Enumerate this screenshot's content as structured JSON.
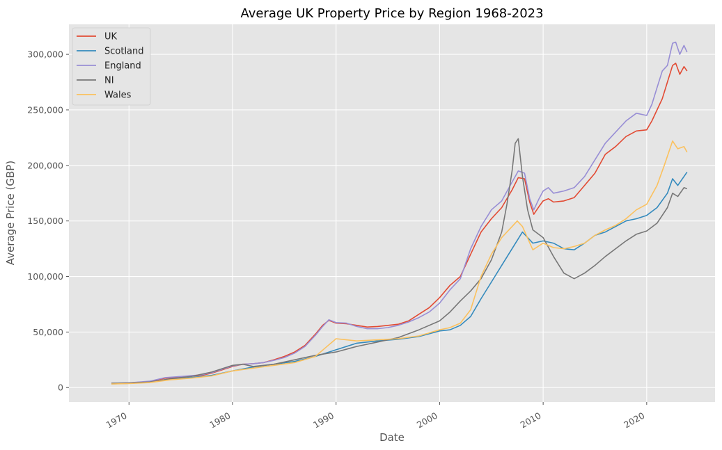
{
  "chart_data": {
    "type": "line",
    "title": "Average UK Property Price by Region 1968-2023",
    "xlabel": "Date",
    "ylabel": "Average Price (GBP)",
    "xlim": [
      1964.2,
      2026.6
    ],
    "ylim": [
      -13000,
      327000
    ],
    "x_ticks": [
      1970,
      1980,
      1990,
      2000,
      2010,
      2020
    ],
    "x_tick_labels": [
      "1970",
      "1980",
      "1990",
      "2000",
      "2010",
      "2020"
    ],
    "y_ticks": [
      0,
      50000,
      100000,
      150000,
      200000,
      250000,
      300000
    ],
    "y_tick_labels": [
      "0",
      "50,000",
      "100,000",
      "150,000",
      "200,000",
      "250,000",
      "300,000"
    ],
    "grid": true,
    "legend_position": "upper-left",
    "series": [
      {
        "name": "UK",
        "color": "#E24A33",
        "x": [
          1968.3,
          1970,
          1972,
          1973.5,
          1975,
          1977,
          1978,
          1979,
          1980,
          1981,
          1982,
          1983,
          1984,
          1985,
          1986,
          1987,
          1988,
          1988.7,
          1989.3,
          1990,
          1991,
          1992,
          1993,
          1994,
          1995,
          1996,
          1997,
          1998,
          1999,
          2000,
          2001,
          2002,
          2003,
          2004,
          2005,
          2006,
          2007,
          2007.6,
          2008.2,
          2008.7,
          2009.1,
          2009.6,
          2010,
          2010.5,
          2011,
          2012,
          2013,
          2014,
          2015,
          2016,
          2017,
          2018,
          2019,
          2020,
          2020.5,
          2021,
          2021.5,
          2022,
          2022.5,
          2022.8,
          2023.2,
          2023.6,
          2023.9
        ],
        "y": [
          3800,
          4200,
          5500,
          8500,
          9500,
          11000,
          13000,
          16000,
          19000,
          21000,
          21500,
          22500,
          25000,
          28000,
          32000,
          38000,
          48000,
          56000,
          60500,
          58000,
          57500,
          56000,
          54500,
          55000,
          56000,
          57000,
          60000,
          66000,
          72000,
          81000,
          92000,
          100000,
          120000,
          140000,
          152000,
          162000,
          178000,
          189000,
          188000,
          167000,
          156000,
          163000,
          168000,
          170000,
          167000,
          168000,
          171000,
          182000,
          193000,
          210000,
          217000,
          226000,
          231000,
          232000,
          240000,
          250000,
          260000,
          275000,
          290000,
          292000,
          282000,
          289000,
          285000
        ]
      },
      {
        "name": "Scotland",
        "color": "#348ABD",
        "x": [
          1968.3,
          1970,
          1972,
          1974,
          1976,
          1978,
          1980,
          1982,
          1984,
          1986,
          1988,
          1990,
          1992,
          1994,
          1996,
          1998,
          2000,
          2001,
          2002,
          2003,
          2004,
          2005,
          2006,
          2007,
          2008,
          2009,
          2010,
          2011,
          2012,
          2013,
          2014,
          2015,
          2016,
          2017,
          2018,
          2019,
          2020,
          2021,
          2022,
          2022.5,
          2023,
          2023.6,
          2023.9
        ],
        "y": [
          3300,
          3800,
          4800,
          7500,
          9000,
          11000,
          15000,
          18500,
          21000,
          23500,
          28000,
          34000,
          40000,
          42000,
          43500,
          46000,
          51000,
          52000,
          56000,
          64000,
          80000,
          95000,
          110000,
          125000,
          140000,
          130000,
          132000,
          130000,
          125000,
          124000,
          130000,
          137000,
          140000,
          145000,
          150000,
          152000,
          155000,
          162000,
          175000,
          188000,
          182000,
          190000,
          194000
        ]
      },
      {
        "name": "England",
        "color": "#988ED5",
        "x": [
          1968.3,
          1970,
          1972,
          1973.5,
          1975,
          1977,
          1978,
          1979,
          1980,
          1981,
          1982,
          1983,
          1984,
          1985,
          1986,
          1987,
          1988,
          1988.7,
          1989.3,
          1990,
          1991,
          1992,
          1993,
          1994,
          1995,
          1996,
          1997,
          1998,
          1999,
          2000,
          2001,
          2002,
          2003,
          2004,
          2005,
          2006,
          2007,
          2007.6,
          2008.2,
          2008.7,
          2009.1,
          2009.6,
          2010,
          2010.5,
          2011,
          2012,
          2013,
          2014,
          2015,
          2016,
          2017,
          2018,
          2019,
          2020,
          2020.5,
          2021,
          2021.5,
          2022,
          2022.5,
          2022.8,
          2023.2,
          2023.6,
          2023.9
        ],
        "y": [
          3900,
          4300,
          5700,
          9000,
          10000,
          11500,
          13500,
          16500,
          19500,
          21000,
          21500,
          22500,
          24500,
          27000,
          31000,
          37000,
          47000,
          55000,
          61000,
          58500,
          58000,
          55000,
          53000,
          53000,
          54000,
          56000,
          59000,
          63000,
          68000,
          76000,
          88000,
          98000,
          125000,
          145000,
          160000,
          168000,
          185000,
          195000,
          193000,
          170000,
          160000,
          170000,
          177000,
          180000,
          175000,
          177000,
          180000,
          190000,
          205000,
          220000,
          230000,
          240000,
          247000,
          245000,
          255000,
          270000,
          285000,
          290000,
          310000,
          311000,
          300000,
          308000,
          302000
        ]
      },
      {
        "name": "NI",
        "color": "#777777",
        "x": [
          1968.3,
          1970,
          1972,
          1974,
          1976,
          1978,
          1980,
          1981,
          1982,
          1984,
          1986,
          1988,
          1990,
          1992,
          1994,
          1996,
          1998,
          2000,
          2001,
          2002,
          2003,
          2004,
          2005,
          2006,
          2006.5,
          2007,
          2007.3,
          2007.6,
          2008,
          2008.5,
          2009,
          2010,
          2011,
          2012,
          2013,
          2014,
          2015,
          2016,
          2017,
          2018,
          2019,
          2020,
          2021,
          2022,
          2022.5,
          2023,
          2023.6,
          2023.9
        ],
        "y": [
          4000,
          4200,
          5000,
          8000,
          10000,
          14000,
          20000,
          21000,
          19000,
          21000,
          25000,
          29000,
          32000,
          37000,
          41000,
          45000,
          52000,
          60000,
          68000,
          78000,
          87000,
          98000,
          115000,
          140000,
          165000,
          195000,
          220000,
          224000,
          190000,
          160000,
          142000,
          135000,
          118000,
          103000,
          98000,
          103000,
          110000,
          118000,
          125000,
          132000,
          138000,
          141000,
          148000,
          162000,
          175000,
          172000,
          180000,
          179000
        ]
      },
      {
        "name": "Wales",
        "color": "#FBC15E",
        "x": [
          1968.3,
          1970,
          1972,
          1974,
          1976,
          1978,
          1980,
          1982,
          1984,
          1986,
          1988,
          1989,
          1990,
          1991,
          1992,
          1994,
          1996,
          1998,
          2000,
          2001,
          2002,
          2003,
          2004,
          2005,
          2006,
          2007,
          2007.5,
          2008,
          2009,
          2010,
          2011,
          2012,
          2013,
          2014,
          2015,
          2016,
          2017,
          2018,
          2019,
          2020,
          2021,
          2021.7,
          2022.5,
          2023,
          2023.6,
          2023.9
        ],
        "y": [
          3200,
          3600,
          4500,
          7000,
          8500,
          10500,
          15000,
          17500,
          20000,
          22500,
          28000,
          36000,
          44000,
          43000,
          42000,
          43000,
          44000,
          46500,
          52000,
          54000,
          58000,
          70000,
          100000,
          120000,
          135000,
          145000,
          150000,
          145000,
          124000,
          130000,
          126000,
          125000,
          127000,
          130000,
          137000,
          142000,
          146000,
          152000,
          160000,
          165000,
          182000,
          200000,
          222000,
          215000,
          217000,
          212000
        ]
      }
    ]
  }
}
